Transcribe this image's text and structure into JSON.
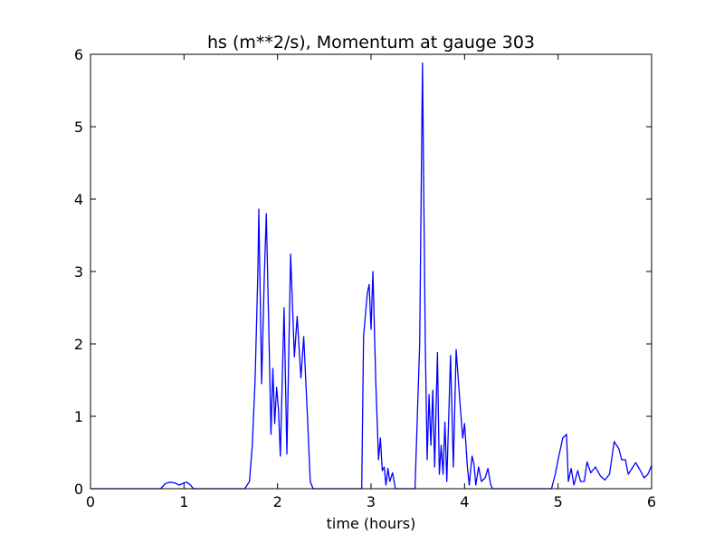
{
  "chart_data": {
    "type": "line",
    "title": "hs (m**2/s), Momentum at gauge 303",
    "x_label": "time (hours)",
    "x": [
      0,
      0.75,
      0.8,
      0.85,
      0.9,
      0.95,
      1.0,
      1.03,
      1.07,
      1.1,
      1.65,
      1.7,
      1.73,
      1.76,
      1.79,
      1.8,
      1.83,
      1.86,
      1.88,
      1.91,
      1.93,
      1.95,
      1.97,
      1.99,
      2.01,
      2.03,
      2.07,
      2.1,
      2.14,
      2.18,
      2.21,
      2.25,
      2.28,
      2.32,
      2.35,
      2.38,
      2.9,
      2.92,
      2.94,
      2.96,
      2.98,
      3.0,
      3.02,
      3.05,
      3.08,
      3.1,
      3.12,
      3.14,
      3.16,
      3.18,
      3.2,
      3.23,
      3.26,
      3.47,
      3.52,
      3.55,
      3.58,
      3.6,
      3.62,
      3.64,
      3.66,
      3.68,
      3.71,
      3.73,
      3.75,
      3.77,
      3.79,
      3.81,
      3.85,
      3.88,
      3.91,
      3.95,
      3.98,
      4.0,
      4.03,
      4.05,
      4.08,
      4.1,
      4.12,
      4.15,
      4.18,
      4.22,
      4.25,
      4.28,
      4.3,
      4.93,
      4.97,
      5.0,
      5.05,
      5.09,
      5.11,
      5.14,
      5.17,
      5.21,
      5.24,
      5.28,
      5.31,
      5.35,
      5.4,
      5.45,
      5.5,
      5.55,
      5.6,
      5.65,
      5.68,
      5.72,
      5.75,
      5.79,
      5.83,
      5.88,
      5.92,
      5.96,
      6.0
    ],
    "series": [
      {
        "color": "#0000ff",
        "values": [
          0,
          0,
          0.07,
          0.09,
          0.08,
          0.05,
          0.08,
          0.09,
          0.05,
          0,
          0,
          0.1,
          0.6,
          1.5,
          3.0,
          3.86,
          1.45,
          3.0,
          3.8,
          2.0,
          0.75,
          1.66,
          0.9,
          1.4,
          1.1,
          0.45,
          2.5,
          0.48,
          3.24,
          1.82,
          2.38,
          1.53,
          2.1,
          1.0,
          0.1,
          0,
          0,
          2.1,
          2.4,
          2.7,
          2.82,
          2.2,
          3.0,
          1.5,
          0.4,
          0.7,
          0.25,
          0.3,
          0.05,
          0.28,
          0.1,
          0.22,
          0,
          0,
          2.0,
          5.88,
          2.0,
          0.4,
          1.3,
          0.6,
          1.36,
          0.3,
          1.88,
          0.2,
          0.6,
          0.2,
          0.92,
          0.1,
          1.84,
          0.3,
          1.92,
          1.2,
          0.7,
          0.9,
          0.3,
          0.05,
          0.45,
          0.35,
          0.05,
          0.3,
          0.1,
          0.15,
          0.28,
          0.05,
          0,
          0,
          0.2,
          0.4,
          0.7,
          0.75,
          0.1,
          0.28,
          0.05,
          0.25,
          0.1,
          0.1,
          0.37,
          0.22,
          0.3,
          0.18,
          0.12,
          0.2,
          0.65,
          0.55,
          0.4,
          0.4,
          0.2,
          0.28,
          0.36,
          0.25,
          0.15,
          0.2,
          0.32
        ]
      }
    ],
    "reference_line": {
      "y": 0,
      "color": "#000000",
      "style": "dashed"
    },
    "xlim": [
      0,
      6
    ],
    "ylim": [
      0,
      6
    ],
    "xticks": [
      0,
      1,
      2,
      3,
      4,
      5,
      6
    ],
    "yticks": [
      0,
      1,
      2,
      3,
      4,
      5,
      6
    ]
  }
}
